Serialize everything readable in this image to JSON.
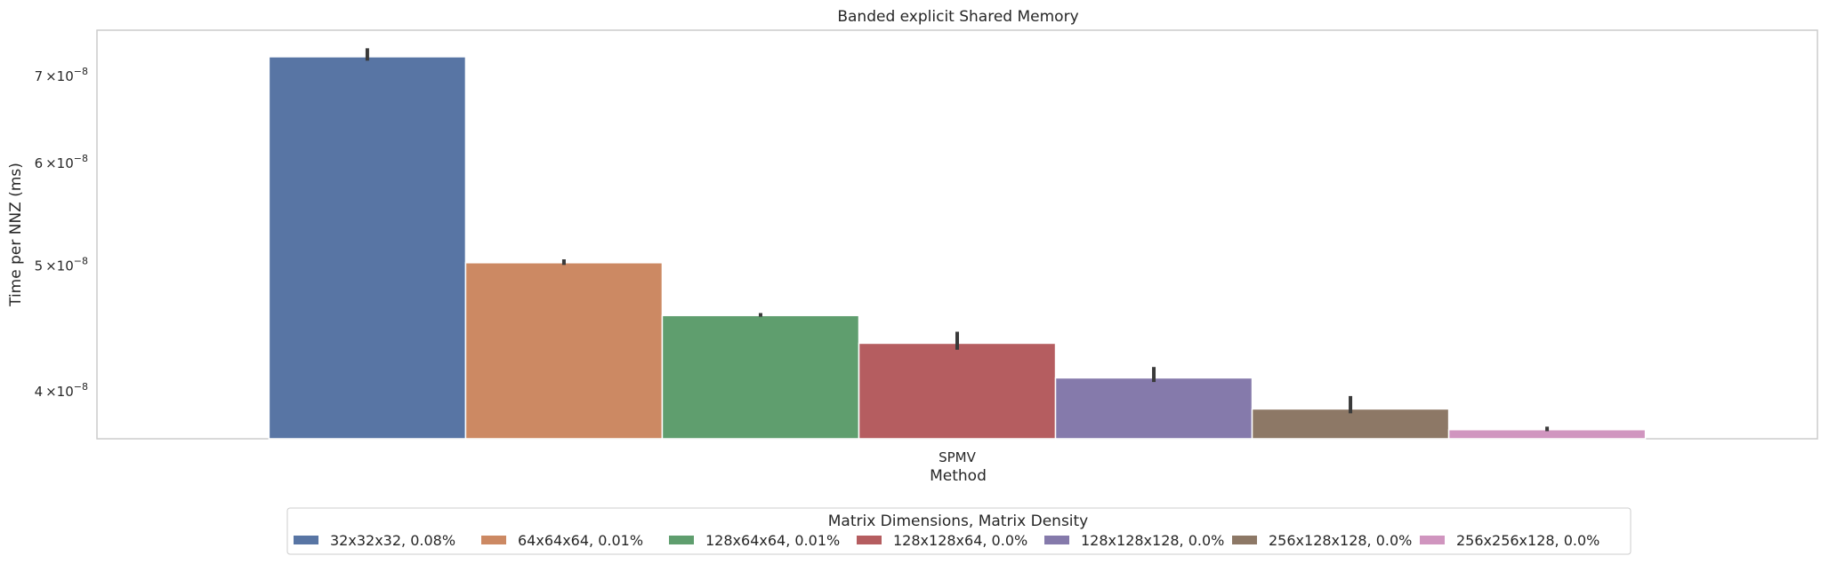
{
  "chart_data": {
    "type": "bar",
    "title": "Banded explicit Shared Memory",
    "xlabel": "Method",
    "ylabel": "Time per NNZ (ms)",
    "yscale": "log",
    "ylim": [
      3.68e-08,
      7.6e-08
    ],
    "categories": [
      "SPMV"
    ],
    "yticks": [
      {
        "value": 4e-08,
        "mantissa": "4",
        "exponent": "−8"
      },
      {
        "value": 5e-08,
        "mantissa": "5",
        "exponent": "−8"
      },
      {
        "value": 6e-08,
        "mantissa": "6",
        "exponent": "−8"
      },
      {
        "value": 7e-08,
        "mantissa": "7",
        "exponent": "−8"
      }
    ],
    "tick_times": "×10",
    "grid": false,
    "legend_title": "Matrix Dimensions, Matrix Density",
    "legend_position": "bottom-center",
    "series": [
      {
        "name": "32x32x32, 0.08%",
        "values": [
          7.25e-08
        ],
        "err": [
          7.2e-08,
          7.36e-08
        ],
        "color": "#5875a4"
      },
      {
        "name": "64x64x64, 0.01%",
        "values": [
          5.03e-08
        ],
        "err": [
          5.01e-08,
          5.06e-08
        ],
        "color": "#cc8963"
      },
      {
        "name": "128x64x64, 0.01%",
        "values": [
          4.58e-08
        ],
        "err": [
          4.57e-08,
          4.6e-08
        ],
        "color": "#5f9e6e"
      },
      {
        "name": "128x128x64, 0.0%",
        "values": [
          4.36e-08
        ],
        "err": [
          4.31e-08,
          4.45e-08
        ],
        "color": "#b55d60"
      },
      {
        "name": "128x128x128, 0.0%",
        "values": [
          4.1e-08
        ],
        "err": [
          4.07e-08,
          4.18e-08
        ],
        "color": "#857aab"
      },
      {
        "name": "256x128x128, 0.0%",
        "values": [
          3.88e-08
        ],
        "err": [
          3.85e-08,
          3.97e-08
        ],
        "color": "#8d7866"
      },
      {
        "name": "256x256x128, 0.0%",
        "values": [
          3.74e-08
        ],
        "err": [
          3.73e-08,
          3.76e-08
        ],
        "color": "#d095bf"
      }
    ]
  }
}
